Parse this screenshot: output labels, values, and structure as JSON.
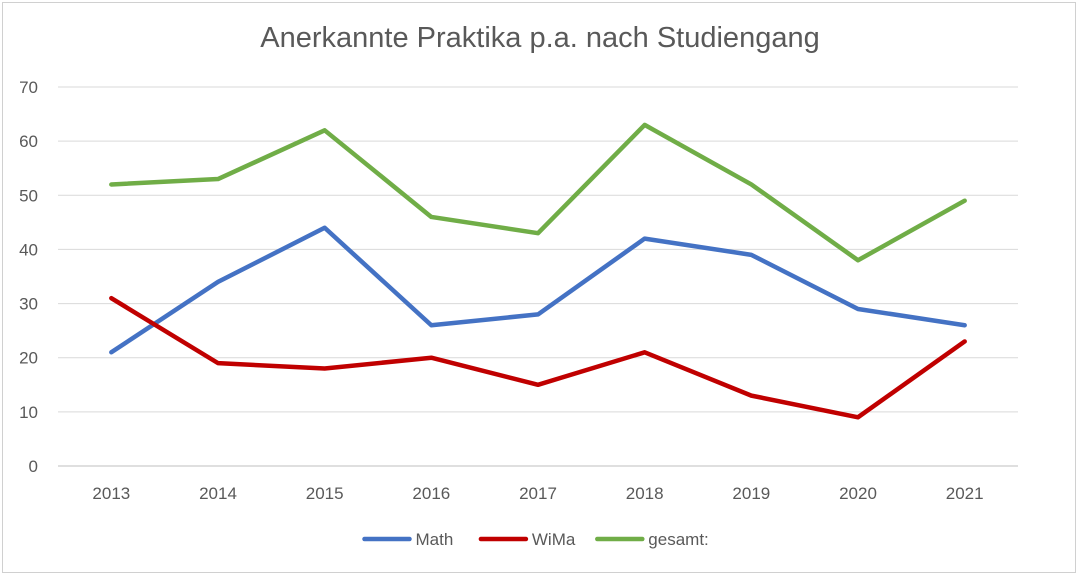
{
  "chart_data": {
    "type": "line",
    "title": "Anerkannte Praktika p.a. nach Studiengang",
    "xlabel": "",
    "ylabel": "",
    "categories": [
      "2013",
      "2014",
      "2015",
      "2016",
      "2017",
      "2018",
      "2019",
      "2020",
      "2021"
    ],
    "ylim": [
      0,
      70
    ],
    "yticks": [
      0,
      10,
      20,
      30,
      40,
      50,
      60,
      70
    ],
    "grid": true,
    "legend": "bottom",
    "series": [
      {
        "name": "Math",
        "color": "#4472C4",
        "values": [
          21,
          34,
          44,
          26,
          28,
          42,
          39,
          29,
          26
        ]
      },
      {
        "name": "WiMa",
        "color": "#C00000",
        "values": [
          31,
          19,
          18,
          20,
          15,
          21,
          13,
          9,
          23
        ]
      },
      {
        "name": "gesamt:",
        "color": "#70AD47",
        "values": [
          52,
          53,
          62,
          46,
          43,
          63,
          52,
          38,
          49
        ]
      }
    ]
  }
}
